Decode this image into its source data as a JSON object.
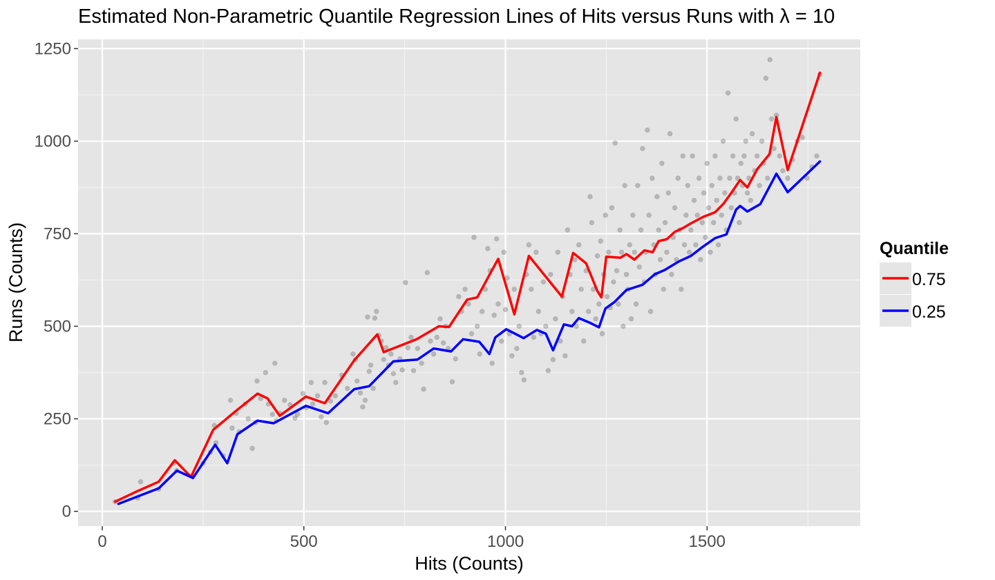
{
  "chart_data": {
    "type": "scatter",
    "title": "Estimated Non-Parametric Quantile Regression Lines of Hits versus Runs with λ = 10",
    "xlabel": "Hits (Counts)",
    "ylabel": "Runs (Counts)",
    "xlim": [
      -60,
      1880
    ],
    "ylim": [
      -40,
      1275
    ],
    "x_ticks": [
      0,
      500,
      1000,
      1500
    ],
    "x_tick_labels": [
      "0",
      "500",
      "1000",
      "1500"
    ],
    "y_ticks": [
      0,
      250,
      500,
      750,
      1000,
      1250
    ],
    "y_tick_labels": [
      "0",
      "250",
      "500",
      "750",
      "1000",
      "1250"
    ],
    "grid": true,
    "legend": {
      "title": "Quantile",
      "placement": "right",
      "entries": [
        {
          "label": "0.75",
          "color": "#ff0000"
        },
        {
          "label": "0.25",
          "color": "#0000ff"
        }
      ]
    },
    "point_color": "#000000",
    "point_alpha": 0.2,
    "points": [
      [
        32,
        26
      ],
      [
        88,
        36
      ],
      [
        95,
        80
      ],
      [
        140,
        60
      ],
      [
        178,
        130
      ],
      [
        185,
        110
      ],
      [
        222,
        95
      ],
      [
        250,
        130
      ],
      [
        268,
        160
      ],
      [
        278,
        232
      ],
      [
        282,
        185
      ],
      [
        300,
        150
      ],
      [
        318,
        300
      ],
      [
        322,
        225
      ],
      [
        332,
        265
      ],
      [
        340,
        215
      ],
      [
        355,
        290
      ],
      [
        362,
        250
      ],
      [
        372,
        170
      ],
      [
        380,
        240
      ],
      [
        384,
        352
      ],
      [
        393,
        305
      ],
      [
        405,
        375
      ],
      [
        412,
        290
      ],
      [
        422,
        262
      ],
      [
        428,
        400
      ],
      [
        432,
        245
      ],
      [
        440,
        265
      ],
      [
        452,
        300
      ],
      [
        466,
        288
      ],
      [
        478,
        252
      ],
      [
        484,
        262
      ],
      [
        498,
        318
      ],
      [
        506,
        280
      ],
      [
        518,
        348
      ],
      [
        522,
        290
      ],
      [
        534,
        312
      ],
      [
        543,
        255
      ],
      [
        552,
        348
      ],
      [
        556,
        240
      ],
      [
        566,
        298
      ],
      [
        578,
        312
      ],
      [
        594,
        368
      ],
      [
        608,
        332
      ],
      [
        622,
        425
      ],
      [
        628,
        410
      ],
      [
        632,
        352
      ],
      [
        640,
        320
      ],
      [
        646,
        282
      ],
      [
        652,
        300
      ],
      [
        658,
        525
      ],
      [
        662,
        378
      ],
      [
        666,
        395
      ],
      [
        672,
        332
      ],
      [
        676,
        522
      ],
      [
        680,
        540
      ],
      [
        686,
        475
      ],
      [
        692,
        460
      ],
      [
        698,
        410
      ],
      [
        704,
        442
      ],
      [
        710,
        395
      ],
      [
        716,
        425
      ],
      [
        722,
        372
      ],
      [
        728,
        348
      ],
      [
        738,
        412
      ],
      [
        744,
        382
      ],
      [
        752,
        618
      ],
      [
        758,
        442
      ],
      [
        766,
        470
      ],
      [
        772,
        380
      ],
      [
        782,
        440
      ],
      [
        792,
        400
      ],
      [
        797,
        330
      ],
      [
        806,
        645
      ],
      [
        814,
        460
      ],
      [
        822,
        425
      ],
      [
        830,
        470
      ],
      [
        838,
        520
      ],
      [
        846,
        455
      ],
      [
        852,
        500
      ],
      [
        858,
        440
      ],
      [
        868,
        350
      ],
      [
        876,
        412
      ],
      [
        884,
        580
      ],
      [
        891,
        540
      ],
      [
        900,
        600
      ],
      [
        908,
        560
      ],
      [
        916,
        480
      ],
      [
        922,
        740
      ],
      [
        930,
        500
      ],
      [
        936,
        425
      ],
      [
        942,
        540
      ],
      [
        950,
        600
      ],
      [
        956,
        710
      ],
      [
        962,
        650
      ],
      [
        967,
        400
      ],
      [
        972,
        530
      ],
      [
        978,
        736
      ],
      [
        982,
        560
      ],
      [
        990,
        460
      ],
      [
        996,
        700
      ],
      [
        1000,
        545
      ],
      [
        1004,
        630
      ],
      [
        1010,
        480
      ],
      [
        1016,
        420
      ],
      [
        1022,
        600
      ],
      [
        1028,
        440
      ],
      [
        1034,
        500
      ],
      [
        1040,
        375
      ],
      [
        1046,
        355
      ],
      [
        1052,
        640
      ],
      [
        1058,
        720
      ],
      [
        1064,
        600
      ],
      [
        1070,
        470
      ],
      [
        1076,
        700
      ],
      [
        1082,
        540
      ],
      [
        1088,
        480
      ],
      [
        1094,
        620
      ],
      [
        1100,
        500
      ],
      [
        1106,
        380
      ],
      [
        1112,
        640
      ],
      [
        1118,
        410
      ],
      [
        1124,
        520
      ],
      [
        1130,
        700
      ],
      [
        1136,
        460
      ],
      [
        1142,
        580
      ],
      [
        1148,
        420
      ],
      [
        1154,
        760
      ],
      [
        1160,
        640
      ],
      [
        1165,
        540
      ],
      [
        1172,
        680
      ],
      [
        1176,
        500
      ],
      [
        1182,
        720
      ],
      [
        1188,
        600
      ],
      [
        1194,
        460
      ],
      [
        1200,
        650
      ],
      [
        1206,
        540
      ],
      [
        1210,
        850
      ],
      [
        1214,
        780
      ],
      [
        1218,
        600
      ],
      [
        1224,
        520
      ],
      [
        1228,
        690
      ],
      [
        1232,
        560
      ],
      [
        1236,
        730
      ],
      [
        1240,
        480
      ],
      [
        1244,
        640
      ],
      [
        1248,
        800
      ],
      [
        1252,
        580
      ],
      [
        1256,
        700
      ],
      [
        1260,
        550
      ],
      [
        1264,
        820
      ],
      [
        1268,
        620
      ],
      [
        1272,
        995
      ],
      [
        1276,
        650
      ],
      [
        1280,
        560
      ],
      [
        1284,
        760
      ],
      [
        1288,
        700
      ],
      [
        1292,
        500
      ],
      [
        1296,
        880
      ],
      [
        1300,
        640
      ],
      [
        1304,
        600
      ],
      [
        1308,
        720
      ],
      [
        1312,
        520
      ],
      [
        1316,
        800
      ],
      [
        1320,
        700
      ],
      [
        1324,
        560
      ],
      [
        1328,
        880
      ],
      [
        1332,
        660
      ],
      [
        1336,
        760
      ],
      [
        1340,
        980
      ],
      [
        1344,
        620
      ],
      [
        1348,
        700
      ],
      [
        1352,
        1030
      ],
      [
        1356,
        800
      ],
      [
        1360,
        540
      ],
      [
        1364,
        900
      ],
      [
        1368,
        720
      ],
      [
        1372,
        640
      ],
      [
        1376,
        850
      ],
      [
        1380,
        760
      ],
      [
        1384,
        680
      ],
      [
        1388,
        940
      ],
      [
        1392,
        600
      ],
      [
        1396,
        780
      ],
      [
        1400,
        700
      ],
      [
        1404,
        860
      ],
      [
        1408,
        1020
      ],
      [
        1412,
        640
      ],
      [
        1416,
        740
      ],
      [
        1420,
        820
      ],
      [
        1424,
        680
      ],
      [
        1428,
        900
      ],
      [
        1432,
        760
      ],
      [
        1436,
        600
      ],
      [
        1440,
        960
      ],
      [
        1444,
        720
      ],
      [
        1448,
        800
      ],
      [
        1452,
        880
      ],
      [
        1456,
        700
      ],
      [
        1460,
        760
      ],
      [
        1464,
        960
      ],
      [
        1468,
        840
      ],
      [
        1472,
        720
      ],
      [
        1476,
        800
      ],
      [
        1480,
        900
      ],
      [
        1484,
        680
      ],
      [
        1488,
        780
      ],
      [
        1492,
        860
      ],
      [
        1496,
        740
      ],
      [
        1500,
        940
      ],
      [
        1504,
        820
      ],
      [
        1508,
        700
      ],
      [
        1512,
        880
      ],
      [
        1516,
        780
      ],
      [
        1520,
        960
      ],
      [
        1524,
        840
      ],
      [
        1528,
        720
      ],
      [
        1532,
        900
      ],
      [
        1536,
        800
      ],
      [
        1540,
        1000
      ],
      [
        1544,
        860
      ],
      [
        1548,
        760
      ],
      [
        1552,
        1130
      ],
      [
        1556,
        900
      ],
      [
        1560,
        820
      ],
      [
        1564,
        960
      ],
      [
        1568,
        860
      ],
      [
        1572,
        1060
      ],
      [
        1576,
        900
      ],
      [
        1580,
        780
      ],
      [
        1584,
        940
      ],
      [
        1588,
        880
      ],
      [
        1592,
        960
      ],
      [
        1596,
        1000
      ],
      [
        1600,
        860
      ],
      [
        1604,
        900
      ],
      [
        1608,
        840
      ],
      [
        1612,
        1020
      ],
      [
        1618,
        920
      ],
      [
        1624,
        960
      ],
      [
        1630,
        880
      ],
      [
        1636,
        1000
      ],
      [
        1640,
        940
      ],
      [
        1646,
        1170
      ],
      [
        1650,
        900
      ],
      [
        1656,
        1220
      ],
      [
        1660,
        1060
      ],
      [
        1666,
        980
      ],
      [
        1672,
        1070
      ],
      [
        1680,
        960
      ],
      [
        1688,
        920
      ],
      [
        1700,
        900
      ],
      [
        1712,
        950
      ],
      [
        1724,
        1000
      ],
      [
        1736,
        1010
      ],
      [
        1748,
        900
      ],
      [
        1760,
        930
      ],
      [
        1772,
        960
      ],
      [
        1780,
        1180
      ]
    ],
    "series": [
      {
        "name": "0.75",
        "color": "#ff0000",
        "x": [
          32,
          88,
          140,
          180,
          220,
          275,
          330,
          385,
          410,
          440,
          505,
          552,
          625,
          682,
          698,
          780,
          835,
          860,
          905,
          930,
          982,
          1022,
          1058,
          1140,
          1168,
          1200,
          1228,
          1238,
          1250,
          1285,
          1300,
          1320,
          1345,
          1365,
          1380,
          1400,
          1420,
          1440,
          1460,
          1490,
          1520,
          1540,
          1560,
          1582,
          1600,
          1625,
          1655,
          1672,
          1700,
          1780
        ],
        "y": [
          26,
          55,
          80,
          138,
          93,
          220,
          270,
          318,
          305,
          258,
          310,
          292,
          408,
          478,
          430,
          465,
          500,
          498,
          572,
          578,
          682,
          532,
          690,
          580,
          698,
          670,
          595,
          578,
          688,
          685,
          695,
          680,
          705,
          700,
          730,
          735,
          755,
          765,
          778,
          795,
          808,
          830,
          860,
          895,
          875,
          925,
          965,
          1065,
          922,
          1185
        ]
      },
      {
        "name": "0.25",
        "color": "#0000ff",
        "x": [
          40,
          140,
          185,
          225,
          280,
          310,
          335,
          385,
          425,
          505,
          560,
          625,
          662,
          722,
          782,
          822,
          865,
          895,
          935,
          960,
          975,
          1002,
          1045,
          1078,
          1100,
          1118,
          1145,
          1165,
          1182,
          1208,
          1232,
          1248,
          1270,
          1300,
          1340,
          1370,
          1395,
          1430,
          1460,
          1490,
          1520,
          1548,
          1572,
          1582,
          1600,
          1632,
          1672,
          1700,
          1780
        ],
        "y": [
          20,
          62,
          110,
          90,
          180,
          130,
          208,
          245,
          238,
          285,
          265,
          330,
          338,
          405,
          410,
          440,
          432,
          465,
          458,
          425,
          470,
          492,
          468,
          490,
          480,
          435,
          505,
          500,
          522,
          510,
          497,
          548,
          565,
          598,
          612,
          640,
          652,
          675,
          690,
          715,
          738,
          748,
          815,
          825,
          810,
          830,
          912,
          862,
          945
        ]
      }
    ]
  }
}
